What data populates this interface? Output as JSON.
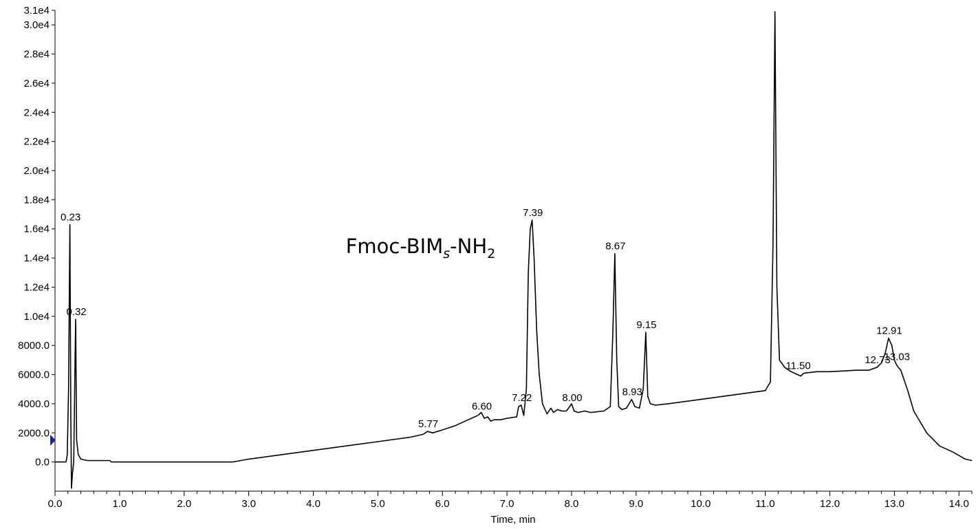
{
  "chart_data": {
    "type": "line",
    "xlabel": "Time, min",
    "ylabel": "",
    "xlim": [
      0.0,
      14.2
    ],
    "ylim": [
      -2000,
      31000
    ],
    "x_ticks": [
      "0.0",
      "1.0",
      "2.0",
      "3.0",
      "4.0",
      "5.0",
      "6.0",
      "7.0",
      "8.0",
      "9.0",
      "10.0",
      "11.0",
      "12.0",
      "13.0",
      "14.0"
    ],
    "y_ticks": [
      {
        "value": 0,
        "label": "0.0"
      },
      {
        "value": 2000,
        "label": "2000.0"
      },
      {
        "value": 4000,
        "label": "4000.0"
      },
      {
        "value": 6000,
        "label": "6000.0"
      },
      {
        "value": 8000,
        "label": "8000.0"
      },
      {
        "value": 10000,
        "label": "1.0e4"
      },
      {
        "value": 12000,
        "label": "1.2e4"
      },
      {
        "value": 14000,
        "label": "1.4e4"
      },
      {
        "value": 16000,
        "label": "1.6e4"
      },
      {
        "value": 18000,
        "label": "1.8e4"
      },
      {
        "value": 20000,
        "label": "2.0e4"
      },
      {
        "value": 22000,
        "label": "2.2e4"
      },
      {
        "value": 24000,
        "label": "2.4e4"
      },
      {
        "value": 26000,
        "label": "2.6e4"
      },
      {
        "value": 28000,
        "label": "2.8e4"
      },
      {
        "value": 30000,
        "label": "3.0e4"
      },
      {
        "value": 31000,
        "label": "3.1e4"
      }
    ],
    "annotation": {
      "base": "Fmoc-BIM",
      "sub1": "s",
      "mid": "-NH",
      "sub2": "2",
      "x": 6.9,
      "y": 14800
    },
    "marker_y": 1500,
    "peaks": [
      {
        "label": "0.23",
        "x": 0.23,
        "y": 16300
      },
      {
        "label": "0.32",
        "x": 0.32,
        "y": 9800
      },
      {
        "label": "5.77",
        "x": 5.77,
        "y": 2100
      },
      {
        "label": "6.60",
        "x": 6.6,
        "y": 3300
      },
      {
        "label": "7.22",
        "x": 7.22,
        "y": 3900
      },
      {
        "label": "7.39",
        "x": 7.39,
        "y": 16600
      },
      {
        "label": "8.00",
        "x": 8.0,
        "y": 3900
      },
      {
        "label": "8.67",
        "x": 8.67,
        "y": 14300
      },
      {
        "label": "8.93",
        "x": 8.93,
        "y": 4300
      },
      {
        "label": "9.15",
        "x": 9.15,
        "y": 8900
      },
      {
        "label": "11.50",
        "x": 11.5,
        "y": 6100
      },
      {
        "label": "12.73",
        "x": 12.73,
        "y": 6500
      },
      {
        "label": "12.91",
        "x": 12.91,
        "y": 8500
      },
      {
        "label": "13.03",
        "x": 13.03,
        "y": 6700
      }
    ],
    "series": [
      {
        "x": [
          0.0,
          0.17,
          0.19,
          0.21,
          0.23,
          0.245,
          0.255,
          0.27,
          0.29,
          0.31,
          0.32,
          0.335,
          0.36,
          0.4,
          0.5,
          0.85,
          0.87,
          1.0,
          2.0,
          2.75,
          3.0,
          4.0,
          5.0,
          5.5,
          5.7,
          5.77,
          5.85,
          6.0,
          6.2,
          6.4,
          6.55,
          6.6,
          6.65,
          6.7,
          6.75,
          6.8,
          6.9,
          7.0,
          7.15,
          7.18,
          7.22,
          7.26,
          7.3,
          7.33,
          7.36,
          7.39,
          7.42,
          7.46,
          7.5,
          7.55,
          7.62,
          7.68,
          7.72,
          7.78,
          7.85,
          7.92,
          7.97,
          8.0,
          8.04,
          8.1,
          8.2,
          8.3,
          8.5,
          8.6,
          8.64,
          8.67,
          8.7,
          8.73,
          8.78,
          8.85,
          8.93,
          8.98,
          9.05,
          9.11,
          9.15,
          9.18,
          9.22,
          9.3,
          9.5,
          10.0,
          10.5,
          11.0,
          11.08,
          11.12,
          11.15,
          11.18,
          11.22,
          11.3,
          11.4,
          11.5,
          11.55,
          11.6,
          11.8,
          12.0,
          12.2,
          12.4,
          12.6,
          12.73,
          12.8,
          12.86,
          12.91,
          12.96,
          13.0,
          13.03,
          13.06,
          13.1,
          13.2,
          13.3,
          13.5,
          13.7,
          13.9,
          14.1,
          14.2
        ],
        "y": [
          0,
          0,
          500,
          5000,
          16300,
          3000,
          -1800,
          -800,
          0,
          7000,
          9800,
          1500,
          500,
          200,
          100,
          100,
          0,
          0,
          0,
          0,
          200,
          800,
          1400,
          1700,
          1900,
          2100,
          2000,
          2200,
          2500,
          2900,
          3200,
          3400,
          3000,
          3100,
          2800,
          2900,
          2900,
          3000,
          3100,
          3800,
          3900,
          3200,
          5000,
          13000,
          16000,
          16600,
          14000,
          9000,
          6000,
          4000,
          3300,
          3700,
          3400,
          3600,
          3500,
          3500,
          3800,
          4000,
          3500,
          3400,
          3500,
          3400,
          3500,
          3800,
          9000,
          14300,
          7000,
          3800,
          3600,
          3700,
          4300,
          3800,
          3700,
          5000,
          8900,
          4500,
          4000,
          3900,
          4000,
          4300,
          4600,
          4900,
          5500,
          15000,
          30900,
          12000,
          7000,
          6500,
          6200,
          6000,
          5900,
          6100,
          6200,
          6200,
          6250,
          6300,
          6300,
          6500,
          6800,
          7500,
          8500,
          8000,
          7000,
          6700,
          6500,
          6300,
          5000,
          3500,
          2000,
          1100,
          700,
          200,
          100
        ]
      }
    ]
  }
}
